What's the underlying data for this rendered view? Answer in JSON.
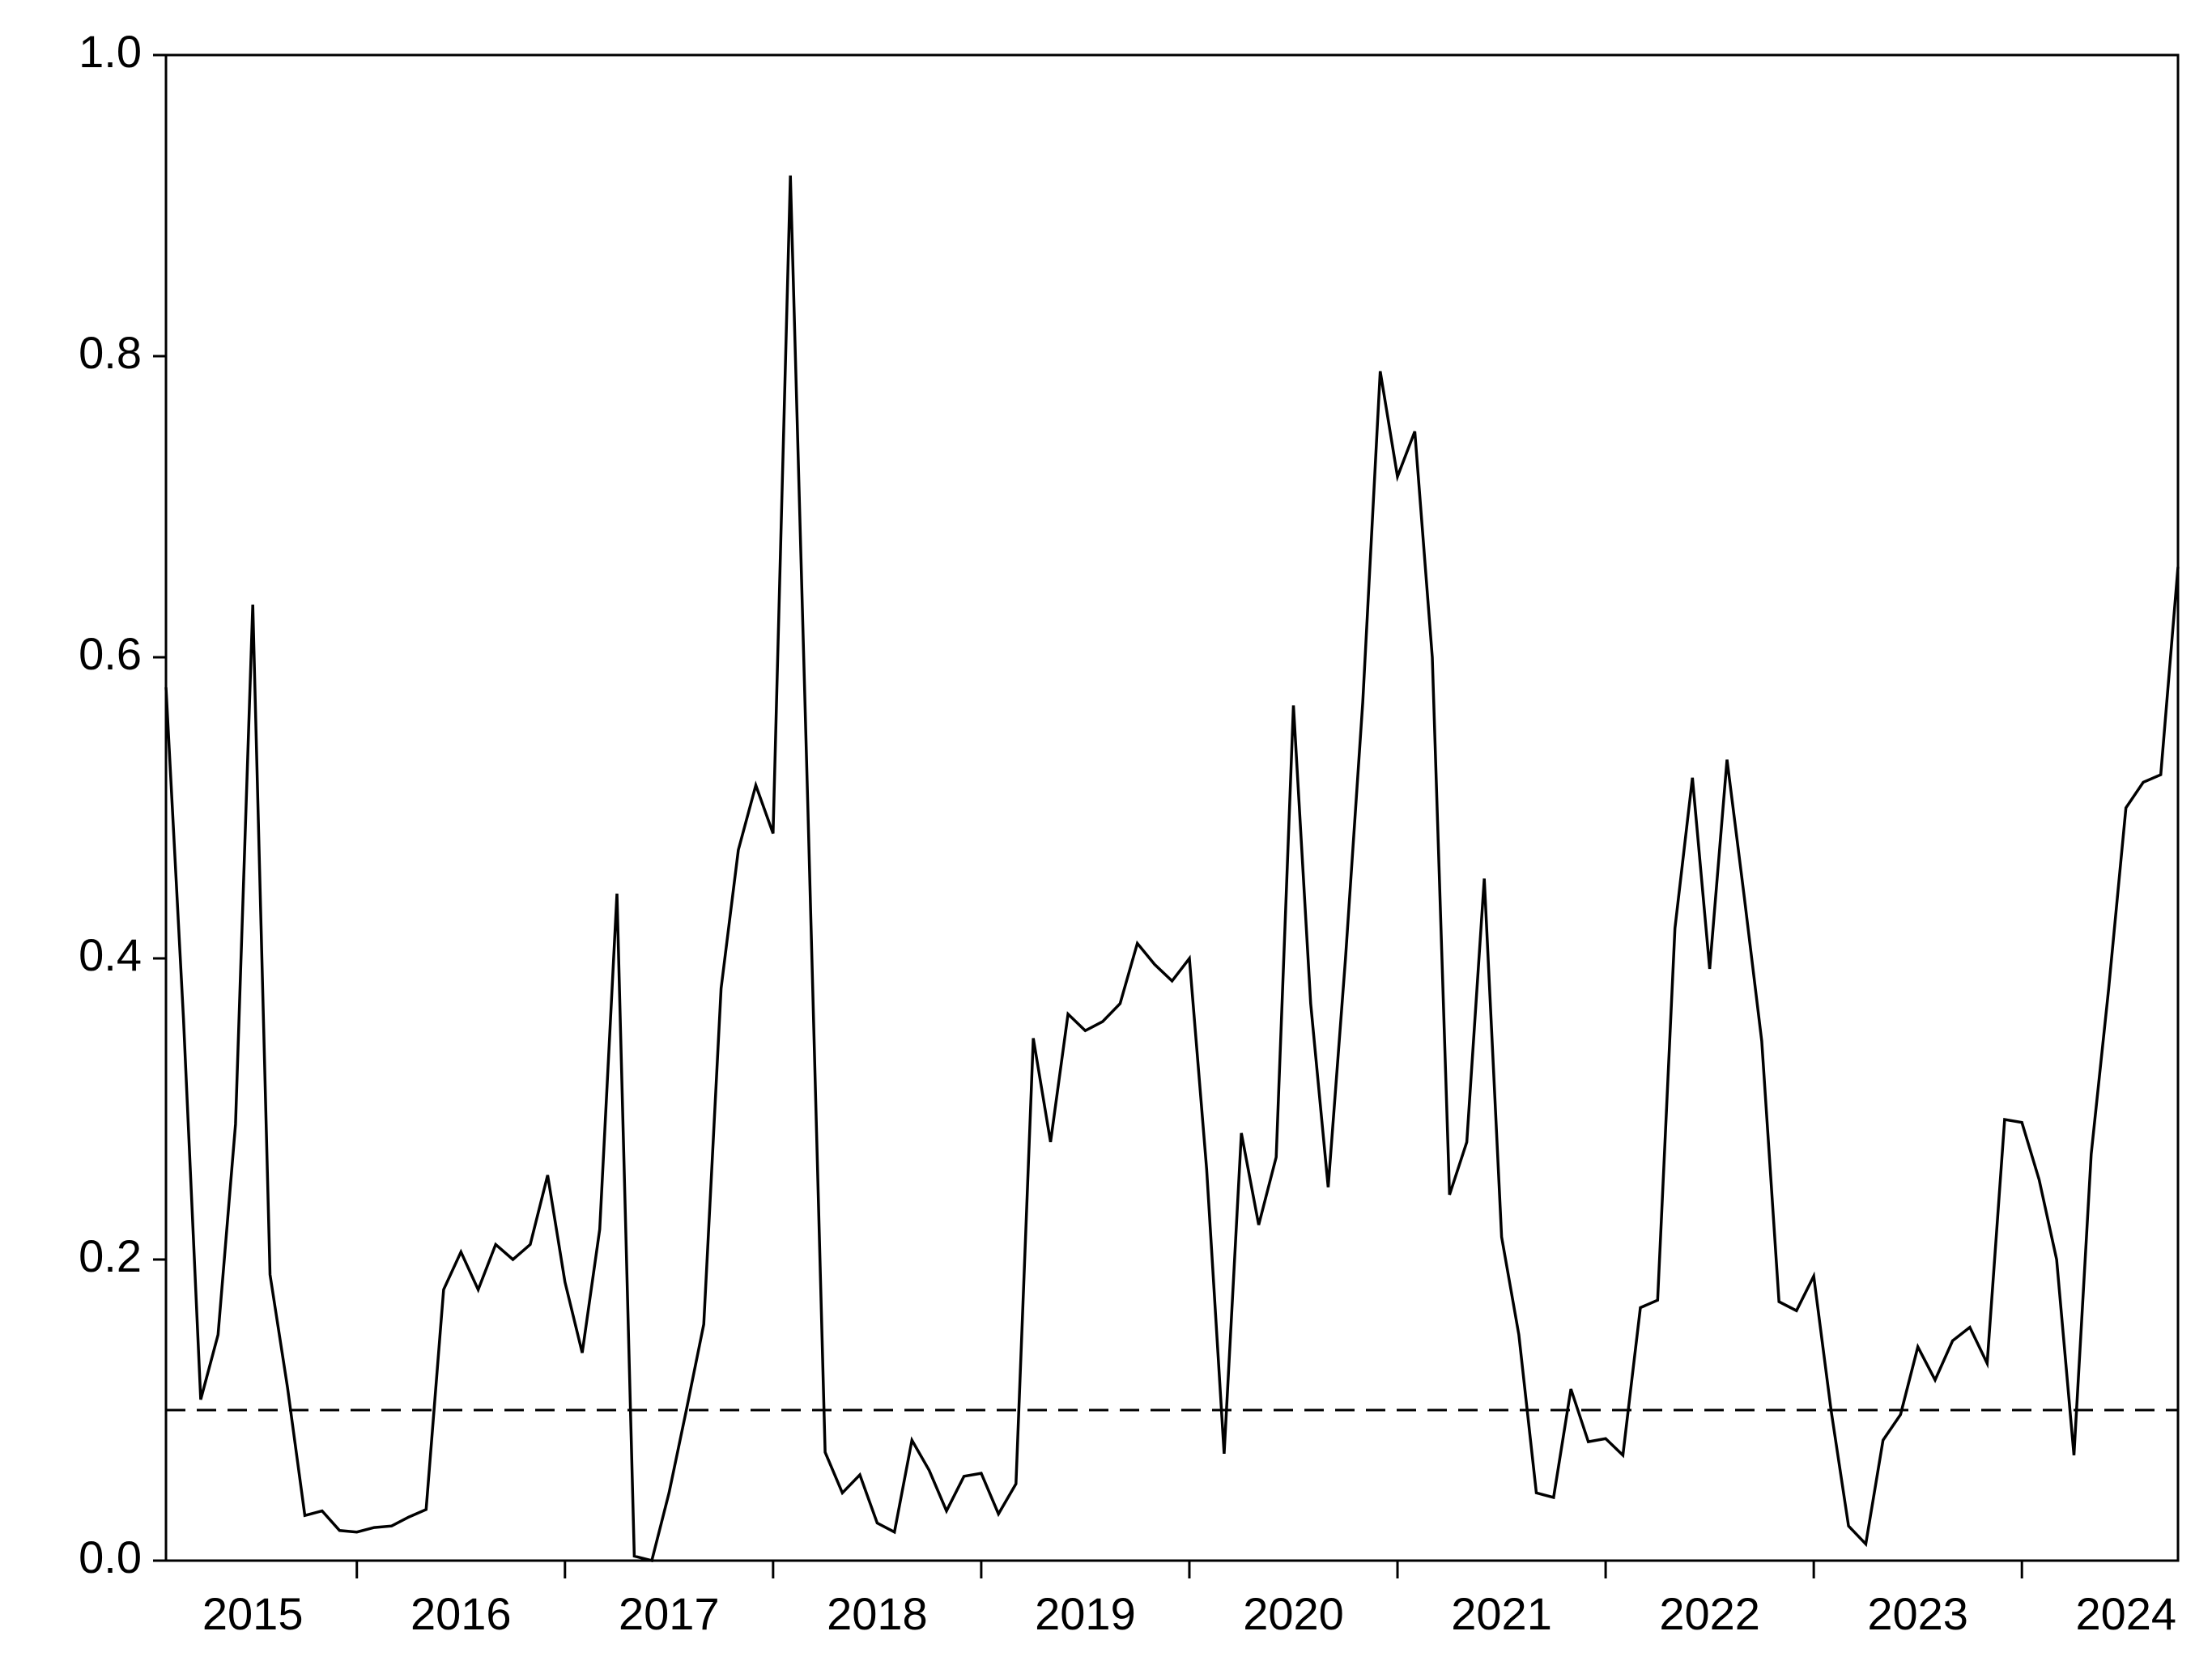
{
  "chart_data": {
    "type": "line",
    "x": [
      2015.083,
      2015.167,
      2015.25,
      2015.333,
      2015.417,
      2015.5,
      2015.583,
      2015.667,
      2015.75,
      2015.833,
      2015.917,
      2016.0,
      2016.083,
      2016.167,
      2016.25,
      2016.333,
      2016.417,
      2016.5,
      2016.583,
      2016.667,
      2016.75,
      2016.833,
      2016.917,
      2017.0,
      2017.083,
      2017.167,
      2017.25,
      2017.333,
      2017.417,
      2017.5,
      2017.583,
      2017.667,
      2017.75,
      2017.833,
      2017.917,
      2018.0,
      2018.083,
      2018.167,
      2018.25,
      2018.333,
      2018.417,
      2018.5,
      2018.583,
      2018.667,
      2018.75,
      2018.833,
      2018.917,
      2019.0,
      2019.083,
      2019.167,
      2019.25,
      2019.333,
      2019.417,
      2019.5,
      2019.583,
      2019.667,
      2019.75,
      2019.833,
      2019.917,
      2020.0,
      2020.083,
      2020.167,
      2020.25,
      2020.333,
      2020.417,
      2020.5,
      2020.583,
      2020.667,
      2020.75,
      2020.833,
      2020.917,
      2021.0,
      2021.083,
      2021.167,
      2021.25,
      2021.333,
      2021.417,
      2021.5,
      2021.583,
      2021.667,
      2021.75,
      2021.833,
      2021.917,
      2022.0,
      2022.083,
      2022.167,
      2022.25,
      2022.333,
      2022.417,
      2022.5,
      2022.583,
      2022.667,
      2022.75,
      2022.833,
      2022.917,
      2023.0,
      2023.083,
      2023.167,
      2023.25,
      2023.333,
      2023.417,
      2023.5,
      2023.583,
      2023.667,
      2023.75,
      2023.833,
      2023.917,
      2024.0,
      2024.083,
      2024.167,
      2024.25,
      2024.333,
      2024.417,
      2024.5,
      2024.583,
      2024.667,
      2024.75
    ],
    "values": [
      0.58,
      0.36,
      0.107,
      0.15,
      0.29,
      0.635,
      0.19,
      0.115,
      0.03,
      0.033,
      0.02,
      0.019,
      0.022,
      0.023,
      0.029,
      0.034,
      0.18,
      0.205,
      0.18,
      0.21,
      0.2,
      0.21,
      0.256,
      0.185,
      0.138,
      0.22,
      0.443,
      0.003,
      0.0,
      0.045,
      0.1,
      0.157,
      0.38,
      0.472,
      0.515,
      0.483,
      0.92,
      0.5,
      0.072,
      0.045,
      0.057,
      0.025,
      0.019,
      0.08,
      0.06,
      0.033,
      0.056,
      0.058,
      0.031,
      0.051,
      0.347,
      0.278,
      0.363,
      0.352,
      0.358,
      0.37,
      0.41,
      0.396,
      0.385,
      0.4,
      0.26,
      0.071,
      0.284,
      0.223,
      0.268,
      0.568,
      0.37,
      0.248,
      0.4,
      0.57,
      0.79,
      0.72,
      0.75,
      0.6,
      0.243,
      0.278,
      0.453,
      0.215,
      0.15,
      0.045,
      0.042,
      0.114,
      0.079,
      0.081,
      0.07,
      0.168,
      0.173,
      0.42,
      0.52,
      0.393,
      0.532,
      0.44,
      0.345,
      0.172,
      0.166,
      0.189,
      0.1,
      0.023,
      0.011,
      0.08,
      0.097,
      0.142,
      0.12,
      0.146,
      0.155,
      0.131,
      0.293,
      0.291,
      0.253,
      0.2,
      0.07,
      0.27,
      0.38,
      0.5,
      0.517,
      0.522,
      0.66
    ],
    "color": "#000000",
    "reference_line": 0.1,
    "xlim": [
      2015.083,
      2024.75
    ],
    "xticks": [
      2016,
      2017,
      2018,
      2019,
      2020,
      2021,
      2022,
      2023,
      2024
    ],
    "xlabels": [
      {
        "value": 2015.5,
        "label": "2015"
      },
      {
        "value": 2016.5,
        "label": "2016"
      },
      {
        "value": 2017.5,
        "label": "2017"
      },
      {
        "value": 2018.5,
        "label": "2018"
      },
      {
        "value": 2019.5,
        "label": "2019"
      },
      {
        "value": 2020.5,
        "label": "2020"
      },
      {
        "value": 2021.5,
        "label": "2021"
      },
      {
        "value": 2022.5,
        "label": "2022"
      },
      {
        "value": 2023.5,
        "label": "2023"
      },
      {
        "value": 2024.5,
        "label": "2024"
      }
    ],
    "ylim": [
      0,
      1
    ],
    "yticks": [
      {
        "value": 0,
        "label": "0.0"
      },
      0.2,
      0.4,
      0.6,
      0.8,
      {
        "value": 1,
        "label": "1.0"
      }
    ]
  }
}
